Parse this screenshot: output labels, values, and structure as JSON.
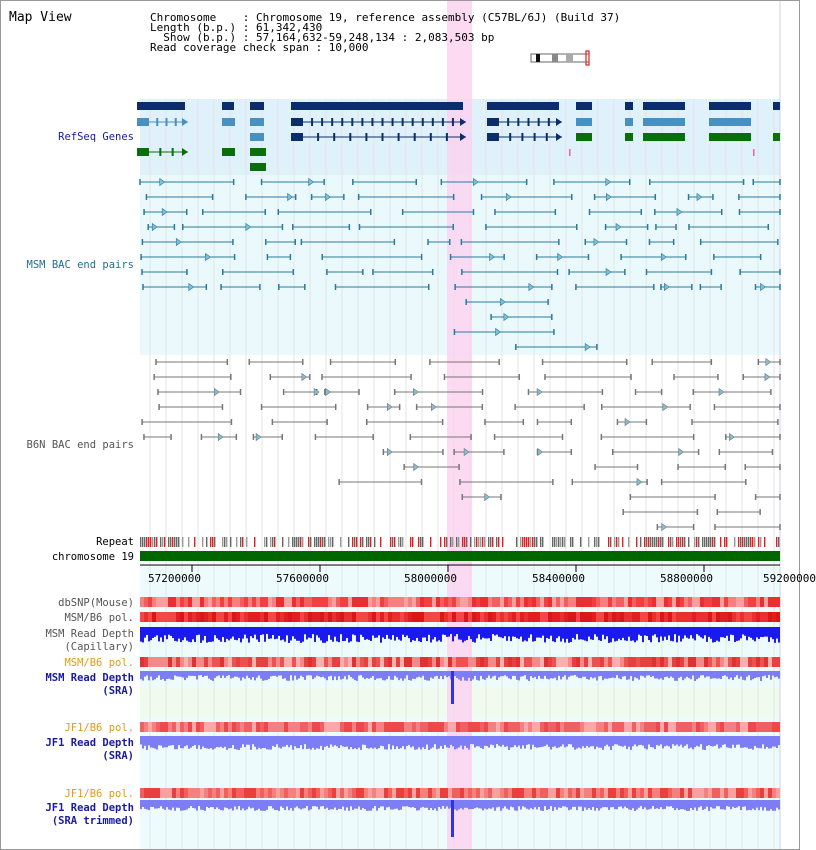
{
  "header": {
    "title": "Map View",
    "lines": [
      "Chromosome    : Chromosome 19, reference assembly (C57BL/6J) (Build 37)",
      "Length (b.p.) : 61,342,430",
      "  Show (b.p.) : 57,164,632-59,248,134 : 2,083,503 bp",
      "Read coverage check span : 10,000"
    ]
  },
  "tracks": {
    "refseq": "RefSeq Genes",
    "msm_bac": "MSM BAC end pairs",
    "b6n_bac": "B6N BAC end pairs",
    "repeat": "Repeat",
    "chromosome": "chromosome 19",
    "dbsnp": "dbSNP(Mouse)",
    "msm_pol1": "MSM/B6 pol.",
    "msm_depth_cap1": "MSM Read Depth",
    "msm_depth_cap2": "(Capillary)",
    "msm_pol2": "MSM/B6 pol.",
    "msm_depth_sra1": "MSM Read Depth",
    "msm_depth_sra2": "(SRA)",
    "jf1_pol1": "JF1/B6 pol.",
    "jf1_depth1": "JF1 Read Depth",
    "jf1_depth2": "(SRA)",
    "jf1_pol2": "JF1/B6 pol.",
    "jf1_trim1": "JF1 Read Depth",
    "jf1_trim2": "(SRA trimmed)"
  },
  "axis": {
    "ticks": [
      "57200000",
      "57600000",
      "58000000",
      "58400000",
      "58800000",
      "59200000"
    ]
  },
  "colors": {
    "refseq_bg": "#dff1fb",
    "msm_bg": "#eafafc",
    "b6n_bg": "#ffffff",
    "lower_bg": "#edfbfc",
    "highlight": "#fad3f0",
    "gene_dark": "#0b2e6b",
    "gene_mid": "#4790c0",
    "gene_green": "#0a6e0a",
    "msm_pair": "#2b7a9c",
    "b6n_pair": "#777777",
    "chrom": "#006600",
    "depth_dark": "#1a1aee",
    "depth_light": "#7d7df5",
    "label_blue": "#1a1aa0",
    "label_teal": "#1f6f93",
    "label_gray": "#555555",
    "label_orange": "#e39a19"
  }
}
